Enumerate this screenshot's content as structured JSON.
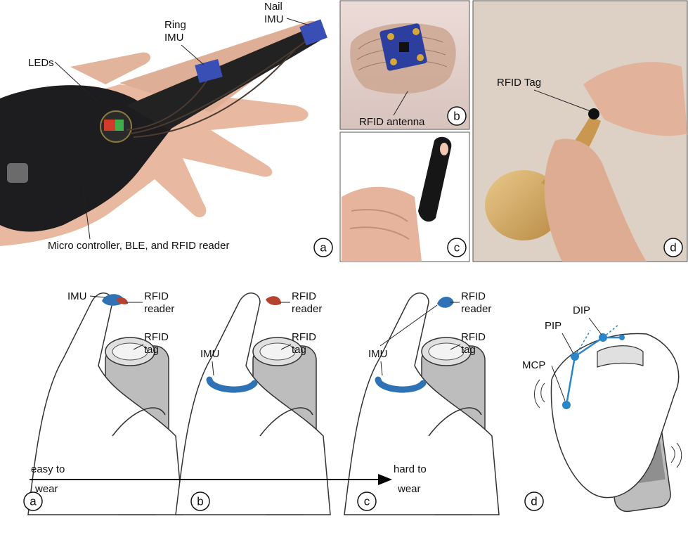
{
  "photos": {
    "a": {
      "letter": "a",
      "labels": {
        "leds": "LEDs",
        "ring_imu": [
          "Ring",
          "IMU"
        ],
        "nail_imu": [
          "Nail",
          "IMU"
        ],
        "controller": "Micro controller, BLE, and RFID reader"
      }
    },
    "b": {
      "letter": "b",
      "labels": {
        "antenna": "RFID antenna"
      }
    },
    "c": {
      "letter": "c"
    },
    "d": {
      "letter": "d",
      "labels": {
        "tag": "RFID Tag"
      }
    }
  },
  "drawings": {
    "a": {
      "letter": "a",
      "labels": {
        "imu": "IMU",
        "reader": [
          "RFID",
          "reader"
        ],
        "tag": [
          "RFID",
          "tag"
        ]
      }
    },
    "b": {
      "letter": "b",
      "labels": {
        "imu": "IMU",
        "reader": [
          "RFID",
          "reader"
        ],
        "tag": [
          "RFID",
          "tag"
        ]
      }
    },
    "c": {
      "letter": "c",
      "labels": {
        "imu": "IMU",
        "reader": [
          "RFID",
          "reader"
        ],
        "tag": [
          "RFID",
          "tag"
        ]
      }
    },
    "d": {
      "letter": "d",
      "labels": {
        "dip": "DIP",
        "pip": "PIP",
        "mcp": "MCP"
      }
    }
  },
  "axis": {
    "start": [
      "easy to",
      "wear"
    ],
    "end": [
      "hard to",
      "wear"
    ]
  },
  "colors": {
    "imu_blue": "#2f73b6",
    "reader_red": "#b5432f",
    "joint_blue": "#2b86c8"
  }
}
